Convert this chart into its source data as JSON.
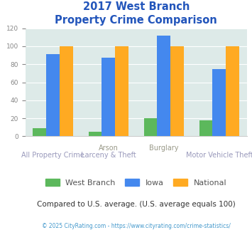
{
  "title_line1": "2017 West Branch",
  "title_line2": "Property Crime Comparison",
  "west_branch": [
    9,
    5,
    20,
    18
  ],
  "iowa": [
    91,
    87,
    112,
    75
  ],
  "national": [
    100,
    100,
    100,
    100
  ],
  "bar_color_wb": "#5cb85c",
  "bar_color_iowa": "#4488ee",
  "bar_color_national": "#ffaa22",
  "bg_color": "#ddeae8",
  "ylim": [
    0,
    120
  ],
  "yticks": [
    0,
    20,
    40,
    60,
    80,
    100,
    120
  ],
  "subtitle": "Compared to U.S. average. (U.S. average equals 100)",
  "footnote": "© 2025 CityRating.com - https://www.cityrating.com/crime-statistics/",
  "title_color": "#2255bb",
  "label_top_color": "#999988",
  "label_bottom_color": "#9999bb",
  "subtitle_color": "#333333",
  "footnote_color": "#4499cc"
}
